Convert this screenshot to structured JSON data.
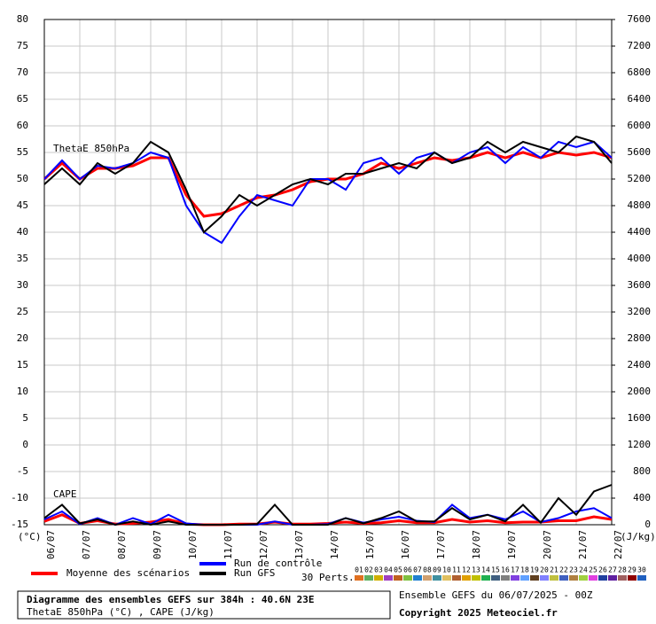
{
  "chart_data": {
    "type": "line",
    "annotations": [
      "ThetaE 850hPa",
      "CAPE"
    ],
    "xlabel": "(°C)",
    "y2label": "(J/kg)",
    "x": [
      0,
      12,
      24,
      36,
      48,
      60,
      72,
      84,
      96,
      108,
      120,
      132,
      144,
      156,
      168,
      180,
      192,
      204,
      216,
      228,
      240,
      252,
      264,
      276,
      288,
      300,
      312,
      324,
      336,
      348,
      360,
      372,
      384
    ],
    "xlim": [
      0,
      384
    ],
    "xticks": [
      {
        "value": 0,
        "label": "06/07"
      },
      {
        "value": 24,
        "label": "07/07"
      },
      {
        "value": 48,
        "label": "08/07"
      },
      {
        "value": 72,
        "label": "09/07"
      },
      {
        "value": 96,
        "label": "10/07"
      },
      {
        "value": 120,
        "label": "11/07"
      },
      {
        "value": 144,
        "label": "12/07"
      },
      {
        "value": 168,
        "label": "13/07"
      },
      {
        "value": 192,
        "label": "14/07"
      },
      {
        "value": 216,
        "label": "15/07"
      },
      {
        "value": 240,
        "label": "16/07"
      },
      {
        "value": 264,
        "label": "17/07"
      },
      {
        "value": 288,
        "label": "18/07"
      },
      {
        "value": 312,
        "label": "19/07"
      },
      {
        "value": 336,
        "label": "20/07"
      },
      {
        "value": 360,
        "label": "21/07"
      },
      {
        "value": 384,
        "label": "22/07"
      }
    ],
    "ylim": [
      -15,
      80
    ],
    "yticks": [
      -15,
      -10,
      -5,
      0,
      5,
      10,
      15,
      20,
      25,
      30,
      35,
      40,
      45,
      50,
      55,
      60,
      65,
      70,
      75,
      80
    ],
    "y2lim": [
      0,
      7600
    ],
    "y2ticks": [
      0,
      400,
      800,
      1200,
      1600,
      2000,
      2400,
      2800,
      3200,
      3600,
      4000,
      4400,
      4800,
      5200,
      5600,
      6000,
      6400,
      6800,
      7200,
      7600
    ],
    "grid": true,
    "series": [
      {
        "name": "Moyenne des scénarios",
        "color": "#ff0000",
        "values": [
          50,
          53,
          50,
          52,
          52,
          52.5,
          54,
          54,
          47,
          43,
          43.5,
          45,
          46.5,
          47,
          48,
          49.5,
          50,
          50,
          51,
          53,
          52,
          53,
          54,
          53.5,
          54,
          55,
          54,
          55,
          54,
          55,
          54.5,
          55,
          54
        ]
      },
      {
        "name": "Run de contrôle",
        "color": "#0000ff",
        "values": [
          50,
          53.5,
          50,
          52.5,
          52,
          53,
          55,
          54,
          45,
          40,
          38,
          43,
          47,
          46,
          45,
          50,
          50,
          48,
          53,
          54,
          51,
          54,
          55,
          53,
          55,
          56,
          53,
          56,
          54,
          57,
          56,
          57,
          54
        ]
      },
      {
        "name": "Run GFS",
        "color": "#000000",
        "values": [
          49,
          52,
          49,
          53,
          51,
          53,
          57,
          55,
          48,
          40,
          43,
          47,
          45,
          47,
          49,
          50,
          49,
          51,
          51,
          52,
          53,
          52,
          55,
          53,
          54,
          57,
          55,
          57,
          56,
          55,
          58,
          57,
          53
        ]
      },
      {
        "name": "Moyenne des scénarios",
        "color": "#ff0000",
        "axis": "y2",
        "values": [
          50,
          150,
          20,
          60,
          10,
          20,
          40,
          80,
          10,
          0,
          0,
          10,
          10,
          40,
          10,
          10,
          20,
          40,
          20,
          30,
          60,
          30,
          30,
          80,
          40,
          60,
          30,
          40,
          40,
          60,
          60,
          120,
          80
        ]
      },
      {
        "name": "Run de contrôle",
        "color": "#0000ff",
        "axis": "y2",
        "values": [
          80,
          200,
          10,
          100,
          0,
          100,
          10,
          150,
          20,
          0,
          0,
          0,
          0,
          50,
          0,
          0,
          10,
          100,
          30,
          80,
          120,
          60,
          40,
          300,
          100,
          150,
          80,
          200,
          40,
          100,
          200,
          250,
          100
        ]
      },
      {
        "name": "Run GFS",
        "color": "#000000",
        "axis": "y2",
        "values": [
          100,
          300,
          20,
          80,
          0,
          50,
          0,
          50,
          0,
          0,
          0,
          0,
          10,
          300,
          0,
          0,
          0,
          100,
          20,
          100,
          200,
          50,
          50,
          250,
          80,
          150,
          50,
          300,
          30,
          400,
          150,
          500,
          600
        ]
      }
    ],
    "perturbations": {
      "label": "30 Perts.",
      "names": [
        "01",
        "02",
        "03",
        "04",
        "05",
        "06",
        "07",
        "08",
        "09",
        "10",
        "11",
        "12",
        "13",
        "14",
        "15",
        "16",
        "17",
        "18",
        "19",
        "20",
        "21",
        "22",
        "23",
        "24",
        "25",
        "26",
        "27",
        "28",
        "29",
        "30"
      ],
      "colors": [
        "#e07020",
        "#60b060",
        "#d0b000",
        "#a040c0",
        "#c06020",
        "#80c040",
        "#2080d0",
        "#d0a070",
        "#4090a0",
        "#e0c060",
        "#b06030",
        "#e0a000",
        "#c0c000",
        "#20b050",
        "#406080",
        "#808080",
        "#8040e0",
        "#60a0ff",
        "#604020",
        "#8080ff",
        "#c0c040",
        "#4060c0",
        "#b08040",
        "#a0d040",
        "#e040e0",
        "#2040a0",
        "#6020a0",
        "#a06060",
        "#900000",
        "#2060c0"
      ]
    },
    "footer": {
      "title": "Diagramme des ensembles GEFS sur 384h : 40.6N 23E",
      "subtitle": "ThetaE 850hPa (°C) , CAPE (J/kg)",
      "run": "Ensemble GEFS du 06/07/2025 - 00Z",
      "copyright": "Copyright 2025 Meteociel.fr"
    }
  }
}
